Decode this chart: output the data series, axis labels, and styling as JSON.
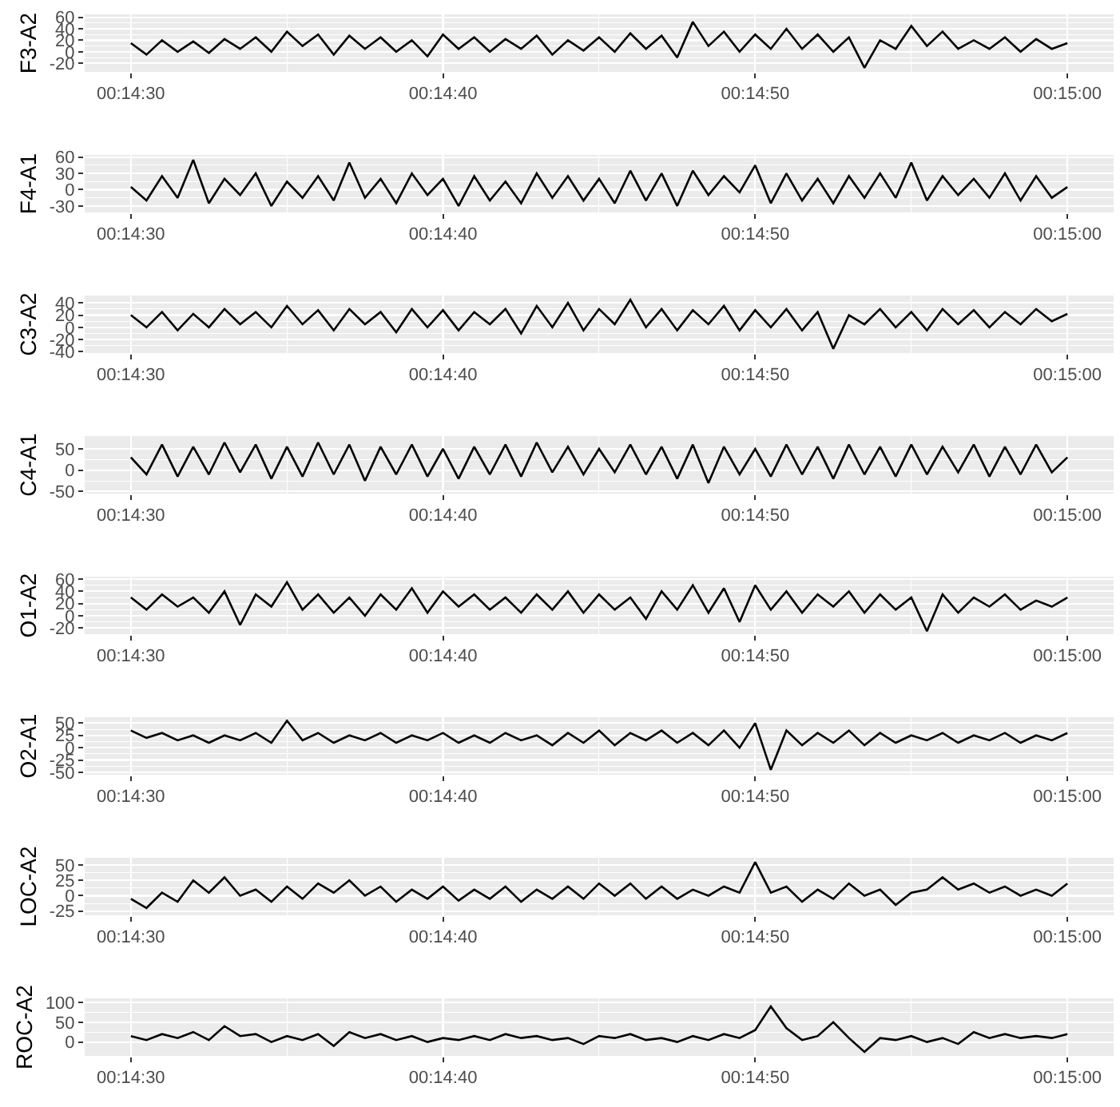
{
  "chart_data": [
    {
      "type": "line",
      "ylabel": "F3-A2",
      "color": "#000000",
      "grid": true,
      "xlim": [
        0.241256,
        0.250411
      ],
      "xticks": [
        {
          "value": 0.2416667,
          "label": "00:14:30"
        },
        {
          "value": 0.2444444,
          "label": "00:14:40"
        },
        {
          "value": 0.2472222,
          "label": "00:14:50"
        },
        {
          "value": 0.25,
          "label": "00:15:00"
        }
      ],
      "ylim": [
        -35,
        65
      ],
      "yticks": [
        -20,
        0,
        20,
        40,
        60
      ],
      "x": [
        0.241667,
        0.241806,
        0.241944,
        0.242083,
        0.242222,
        0.242361,
        0.2425,
        0.242639,
        0.242778,
        0.242917,
        0.243056,
        0.243194,
        0.243333,
        0.243472,
        0.243611,
        0.24375,
        0.243889,
        0.244028,
        0.244167,
        0.244306,
        0.244444,
        0.244583,
        0.244722,
        0.244861,
        0.245,
        0.245139,
        0.245278,
        0.245417,
        0.245556,
        0.245694,
        0.245833,
        0.245972,
        0.246111,
        0.24625,
        0.246389,
        0.246528,
        0.246667,
        0.246806,
        0.246944,
        0.247083,
        0.247222,
        0.247361,
        0.2475,
        0.247639,
        0.247778,
        0.247917,
        0.248056,
        0.248194,
        0.248333,
        0.248472,
        0.248611,
        0.24875,
        0.248889,
        0.249028,
        0.249167,
        0.249306,
        0.249444,
        0.249583,
        0.249722,
        0.249861,
        0.25
      ],
      "values": [
        15,
        -5,
        20,
        0,
        18,
        -2,
        22,
        5,
        25,
        0,
        35,
        10,
        30,
        -5,
        28,
        5,
        25,
        0,
        20,
        -8,
        30,
        5,
        25,
        0,
        22,
        5,
        28,
        -5,
        20,
        2,
        25,
        0,
        32,
        5,
        28,
        -10,
        52,
        10,
        35,
        0,
        30,
        5,
        40,
        5,
        30,
        0,
        25,
        -28,
        20,
        5,
        45,
        10,
        35,
        5,
        20,
        5,
        25,
        0,
        22,
        5,
        15
      ]
    },
    {
      "type": "line",
      "ylabel": "F4-A1",
      "color": "#000000",
      "grid": true,
      "xlim": [
        0.241256,
        0.250411
      ],
      "xticks": [
        {
          "value": 0.2416667,
          "label": "00:14:30"
        },
        {
          "value": 0.2444444,
          "label": "00:14:40"
        },
        {
          "value": 0.2472222,
          "label": "00:14:50"
        },
        {
          "value": 0.25,
          "label": "00:15:00"
        }
      ],
      "ylim": [
        -42,
        64
      ],
      "yticks": [
        -30,
        0,
        30,
        60
      ],
      "x": [
        0.241667,
        0.241806,
        0.241944,
        0.242083,
        0.242222,
        0.242361,
        0.2425,
        0.242639,
        0.242778,
        0.242917,
        0.243056,
        0.243194,
        0.243333,
        0.243472,
        0.243611,
        0.24375,
        0.243889,
        0.244028,
        0.244167,
        0.244306,
        0.244444,
        0.244583,
        0.244722,
        0.244861,
        0.245,
        0.245139,
        0.245278,
        0.245417,
        0.245556,
        0.245694,
        0.245833,
        0.245972,
        0.246111,
        0.24625,
        0.246389,
        0.246528,
        0.246667,
        0.246806,
        0.246944,
        0.247083,
        0.247222,
        0.247361,
        0.2475,
        0.247639,
        0.247778,
        0.247917,
        0.248056,
        0.248194,
        0.248333,
        0.248472,
        0.248611,
        0.24875,
        0.248889,
        0.249028,
        0.249167,
        0.249306,
        0.249444,
        0.249583,
        0.249722,
        0.249861,
        0.25
      ],
      "values": [
        5,
        -20,
        25,
        -15,
        55,
        -25,
        20,
        -10,
        30,
        -30,
        15,
        -15,
        25,
        -20,
        50,
        -15,
        20,
        -25,
        30,
        -10,
        20,
        -30,
        25,
        -20,
        15,
        -25,
        30,
        -15,
        25,
        -20,
        20,
        -25,
        35,
        -20,
        30,
        -30,
        35,
        -10,
        25,
        -5,
        45,
        -25,
        30,
        -20,
        20,
        -25,
        25,
        -15,
        30,
        -15,
        50,
        -20,
        25,
        -10,
        20,
        -15,
        30,
        -20,
        25,
        -15,
        5
      ]
    },
    {
      "type": "line",
      "ylabel": "C3-A2",
      "color": "#000000",
      "grid": true,
      "xlim": [
        0.241256,
        0.250411
      ],
      "xticks": [
        {
          "value": 0.2416667,
          "label": "00:14:30"
        },
        {
          "value": 0.2444444,
          "label": "00:14:40"
        },
        {
          "value": 0.2472222,
          "label": "00:14:50"
        },
        {
          "value": 0.25,
          "label": "00:15:00"
        }
      ],
      "ylim": [
        -42,
        52
      ],
      "yticks": [
        -40,
        -20,
        0,
        20,
        40
      ],
      "x": [
        0.241667,
        0.241806,
        0.241944,
        0.242083,
        0.242222,
        0.242361,
        0.2425,
        0.242639,
        0.242778,
        0.242917,
        0.243056,
        0.243194,
        0.243333,
        0.243472,
        0.243611,
        0.24375,
        0.243889,
        0.244028,
        0.244167,
        0.244306,
        0.244444,
        0.244583,
        0.244722,
        0.244861,
        0.245,
        0.245139,
        0.245278,
        0.245417,
        0.245556,
        0.245694,
        0.245833,
        0.245972,
        0.246111,
        0.24625,
        0.246389,
        0.246528,
        0.246667,
        0.246806,
        0.246944,
        0.247083,
        0.247222,
        0.247361,
        0.2475,
        0.247639,
        0.247778,
        0.247917,
        0.248056,
        0.248194,
        0.248333,
        0.248472,
        0.248611,
        0.24875,
        0.248889,
        0.249028,
        0.249167,
        0.249306,
        0.249444,
        0.249583,
        0.249722,
        0.249861,
        0.25
      ],
      "values": [
        20,
        0,
        25,
        -5,
        22,
        0,
        30,
        5,
        25,
        0,
        35,
        5,
        28,
        -5,
        30,
        5,
        25,
        -8,
        30,
        0,
        28,
        -5,
        25,
        5,
        30,
        -10,
        35,
        0,
        40,
        -5,
        30,
        5,
        45,
        0,
        30,
        -5,
        28,
        5,
        35,
        -5,
        28,
        0,
        30,
        -5,
        25,
        -35,
        20,
        5,
        30,
        0,
        25,
        -5,
        30,
        5,
        28,
        0,
        25,
        5,
        30,
        10,
        22
      ]
    },
    {
      "type": "line",
      "ylabel": "C4-A1",
      "color": "#000000",
      "grid": true,
      "xlim": [
        0.241256,
        0.250411
      ],
      "xticks": [
        {
          "value": 0.2416667,
          "label": "00:14:30"
        },
        {
          "value": 0.2444444,
          "label": "00:14:40"
        },
        {
          "value": 0.2472222,
          "label": "00:14:50"
        },
        {
          "value": 0.25,
          "label": "00:15:00"
        }
      ],
      "ylim": [
        -55,
        80
      ],
      "yticks": [
        -50,
        0,
        50
      ],
      "x": [
        0.241667,
        0.241806,
        0.241944,
        0.242083,
        0.242222,
        0.242361,
        0.2425,
        0.242639,
        0.242778,
        0.242917,
        0.243056,
        0.243194,
        0.243333,
        0.243472,
        0.243611,
        0.24375,
        0.243889,
        0.244028,
        0.244167,
        0.244306,
        0.244444,
        0.244583,
        0.244722,
        0.244861,
        0.245,
        0.245139,
        0.245278,
        0.245417,
        0.245556,
        0.245694,
        0.245833,
        0.245972,
        0.246111,
        0.24625,
        0.246389,
        0.246528,
        0.246667,
        0.246806,
        0.246944,
        0.247083,
        0.247222,
        0.247361,
        0.2475,
        0.247639,
        0.247778,
        0.247917,
        0.248056,
        0.248194,
        0.248333,
        0.248472,
        0.248611,
        0.24875,
        0.248889,
        0.249028,
        0.249167,
        0.249306,
        0.249444,
        0.249583,
        0.249722,
        0.249861,
        0.25
      ],
      "values": [
        30,
        -10,
        60,
        -15,
        55,
        -10,
        65,
        -5,
        60,
        -20,
        55,
        -15,
        65,
        -10,
        60,
        -25,
        55,
        -10,
        60,
        -15,
        50,
        -20,
        55,
        -10,
        60,
        -15,
        65,
        -5,
        55,
        -10,
        50,
        -5,
        60,
        -10,
        55,
        -20,
        60,
        -30,
        55,
        -10,
        50,
        -15,
        60,
        -10,
        55,
        -20,
        60,
        -10,
        55,
        -15,
        60,
        -10,
        55,
        -5,
        60,
        -15,
        55,
        -10,
        60,
        -5,
        30
      ]
    },
    {
      "type": "line",
      "ylabel": "O1-A2",
      "color": "#000000",
      "grid": true,
      "xlim": [
        0.241256,
        0.250411
      ],
      "xticks": [
        {
          "value": 0.2416667,
          "label": "00:14:30"
        },
        {
          "value": 0.2444444,
          "label": "00:14:40"
        },
        {
          "value": 0.2472222,
          "label": "00:14:50"
        },
        {
          "value": 0.25,
          "label": "00:15:00"
        }
      ],
      "ylim": [
        -30,
        64
      ],
      "yticks": [
        -20,
        0,
        20,
        40,
        60
      ],
      "x": [
        0.241667,
        0.241806,
        0.241944,
        0.242083,
        0.242222,
        0.242361,
        0.2425,
        0.242639,
        0.242778,
        0.242917,
        0.243056,
        0.243194,
        0.243333,
        0.243472,
        0.243611,
        0.24375,
        0.243889,
        0.244028,
        0.244167,
        0.244306,
        0.244444,
        0.244583,
        0.244722,
        0.244861,
        0.245,
        0.245139,
        0.245278,
        0.245417,
        0.245556,
        0.245694,
        0.245833,
        0.245972,
        0.246111,
        0.24625,
        0.246389,
        0.246528,
        0.246667,
        0.246806,
        0.246944,
        0.247083,
        0.247222,
        0.247361,
        0.2475,
        0.247639,
        0.247778,
        0.247917,
        0.248056,
        0.248194,
        0.248333,
        0.248472,
        0.248611,
        0.24875,
        0.248889,
        0.249028,
        0.249167,
        0.249306,
        0.249444,
        0.249583,
        0.249722,
        0.249861,
        0.25
      ],
      "values": [
        30,
        10,
        35,
        15,
        30,
        5,
        40,
        -15,
        35,
        15,
        55,
        10,
        35,
        5,
        30,
        0,
        35,
        10,
        45,
        5,
        40,
        15,
        35,
        10,
        30,
        5,
        35,
        10,
        40,
        5,
        35,
        10,
        30,
        -5,
        40,
        10,
        50,
        5,
        45,
        -10,
        50,
        10,
        40,
        5,
        35,
        15,
        40,
        5,
        35,
        10,
        30,
        -25,
        35,
        5,
        30,
        15,
        35,
        10,
        25,
        15,
        30
      ]
    },
    {
      "type": "line",
      "ylabel": "O2-A1",
      "color": "#000000",
      "grid": true,
      "xlim": [
        0.241256,
        0.250411
      ],
      "xticks": [
        {
          "value": 0.2416667,
          "label": "00:14:30"
        },
        {
          "value": 0.2444444,
          "label": "00:14:40"
        },
        {
          "value": 0.2472222,
          "label": "00:14:50"
        },
        {
          "value": 0.25,
          "label": "00:15:00"
        }
      ],
      "ylim": [
        -55,
        62
      ],
      "yticks": [
        -50,
        -25,
        0,
        25,
        50
      ],
      "x": [
        0.241667,
        0.241806,
        0.241944,
        0.242083,
        0.242222,
        0.242361,
        0.2425,
        0.242639,
        0.242778,
        0.242917,
        0.243056,
        0.243194,
        0.243333,
        0.243472,
        0.243611,
        0.24375,
        0.243889,
        0.244028,
        0.244167,
        0.244306,
        0.244444,
        0.244583,
        0.244722,
        0.244861,
        0.245,
        0.245139,
        0.245278,
        0.245417,
        0.245556,
        0.245694,
        0.245833,
        0.245972,
        0.246111,
        0.24625,
        0.246389,
        0.246528,
        0.246667,
        0.246806,
        0.246944,
        0.247083,
        0.247222,
        0.247361,
        0.2475,
        0.247639,
        0.247778,
        0.247917,
        0.248056,
        0.248194,
        0.248333,
        0.248472,
        0.248611,
        0.24875,
        0.248889,
        0.249028,
        0.249167,
        0.249306,
        0.249444,
        0.249583,
        0.249722,
        0.249861,
        0.25
      ],
      "values": [
        35,
        20,
        30,
        15,
        25,
        10,
        25,
        15,
        30,
        10,
        55,
        15,
        30,
        10,
        25,
        15,
        30,
        10,
        25,
        15,
        30,
        10,
        25,
        10,
        30,
        15,
        25,
        5,
        30,
        10,
        35,
        5,
        30,
        15,
        35,
        10,
        30,
        5,
        35,
        0,
        50,
        -45,
        35,
        5,
        30,
        10,
        35,
        5,
        30,
        10,
        25,
        15,
        30,
        10,
        25,
        15,
        30,
        10,
        25,
        15,
        30
      ]
    },
    {
      "type": "line",
      "ylabel": "LOC-A2",
      "color": "#000000",
      "grid": true,
      "xlim": [
        0.241256,
        0.250411
      ],
      "xticks": [
        {
          "value": 0.2416667,
          "label": "00:14:30"
        },
        {
          "value": 0.2444444,
          "label": "00:14:40"
        },
        {
          "value": 0.2472222,
          "label": "00:14:50"
        },
        {
          "value": 0.25,
          "label": "00:15:00"
        }
      ],
      "ylim": [
        -32,
        62
      ],
      "yticks": [
        -25,
        0,
        25,
        50
      ],
      "x": [
        0.241667,
        0.241806,
        0.241944,
        0.242083,
        0.242222,
        0.242361,
        0.2425,
        0.242639,
        0.242778,
        0.242917,
        0.243056,
        0.243194,
        0.243333,
        0.243472,
        0.243611,
        0.24375,
        0.243889,
        0.244028,
        0.244167,
        0.244306,
        0.244444,
        0.244583,
        0.244722,
        0.244861,
        0.245,
        0.245139,
        0.245278,
        0.245417,
        0.245556,
        0.245694,
        0.245833,
        0.245972,
        0.246111,
        0.24625,
        0.246389,
        0.246528,
        0.246667,
        0.246806,
        0.246944,
        0.247083,
        0.247222,
        0.247361,
        0.2475,
        0.247639,
        0.247778,
        0.247917,
        0.248056,
        0.248194,
        0.248333,
        0.248472,
        0.248611,
        0.24875,
        0.248889,
        0.249028,
        0.249167,
        0.249306,
        0.249444,
        0.249583,
        0.249722,
        0.249861,
        0.25
      ],
      "values": [
        -5,
        -20,
        5,
        -10,
        25,
        5,
        30,
        0,
        10,
        -10,
        15,
        -5,
        20,
        5,
        25,
        0,
        15,
        -10,
        10,
        -5,
        15,
        -8,
        10,
        -5,
        15,
        -10,
        10,
        -5,
        15,
        -5,
        20,
        0,
        20,
        -5,
        15,
        -5,
        10,
        0,
        15,
        5,
        55,
        5,
        15,
        -10,
        10,
        -5,
        20,
        0,
        10,
        -15,
        5,
        10,
        30,
        10,
        20,
        5,
        15,
        0,
        10,
        0,
        20
      ]
    },
    {
      "type": "line",
      "ylabel": "ROC-A2",
      "color": "#000000",
      "grid": true,
      "xlim": [
        0.241256,
        0.250411
      ],
      "xticks": [
        {
          "value": 0.2416667,
          "label": "00:14:30"
        },
        {
          "value": 0.2444444,
          "label": "00:14:40"
        },
        {
          "value": 0.2472222,
          "label": "00:14:50"
        },
        {
          "value": 0.25,
          "label": "00:15:00"
        }
      ],
      "ylim": [
        -35,
        110
      ],
      "yticks": [
        0,
        50,
        100
      ],
      "x": [
        0.241667,
        0.241806,
        0.241944,
        0.242083,
        0.242222,
        0.242361,
        0.2425,
        0.242639,
        0.242778,
        0.242917,
        0.243056,
        0.243194,
        0.243333,
        0.243472,
        0.243611,
        0.24375,
        0.243889,
        0.244028,
        0.244167,
        0.244306,
        0.244444,
        0.244583,
        0.244722,
        0.244861,
        0.245,
        0.245139,
        0.245278,
        0.245417,
        0.245556,
        0.245694,
        0.245833,
        0.245972,
        0.246111,
        0.24625,
        0.246389,
        0.246528,
        0.246667,
        0.246806,
        0.246944,
        0.247083,
        0.247222,
        0.247361,
        0.2475,
        0.247639,
        0.247778,
        0.247917,
        0.248056,
        0.248194,
        0.248333,
        0.248472,
        0.248611,
        0.24875,
        0.248889,
        0.249028,
        0.249167,
        0.249306,
        0.249444,
        0.249583,
        0.249722,
        0.249861,
        0.25
      ],
      "values": [
        15,
        5,
        20,
        10,
        25,
        5,
        40,
        15,
        20,
        0,
        15,
        5,
        20,
        -10,
        25,
        10,
        20,
        5,
        15,
        0,
        10,
        5,
        15,
        5,
        20,
        10,
        15,
        5,
        10,
        -5,
        15,
        10,
        20,
        5,
        10,
        0,
        15,
        5,
        20,
        10,
        30,
        90,
        35,
        5,
        15,
        50,
        10,
        -25,
        10,
        5,
        15,
        0,
        10,
        -5,
        25,
        10,
        20,
        10,
        15,
        10,
        20
      ]
    }
  ]
}
